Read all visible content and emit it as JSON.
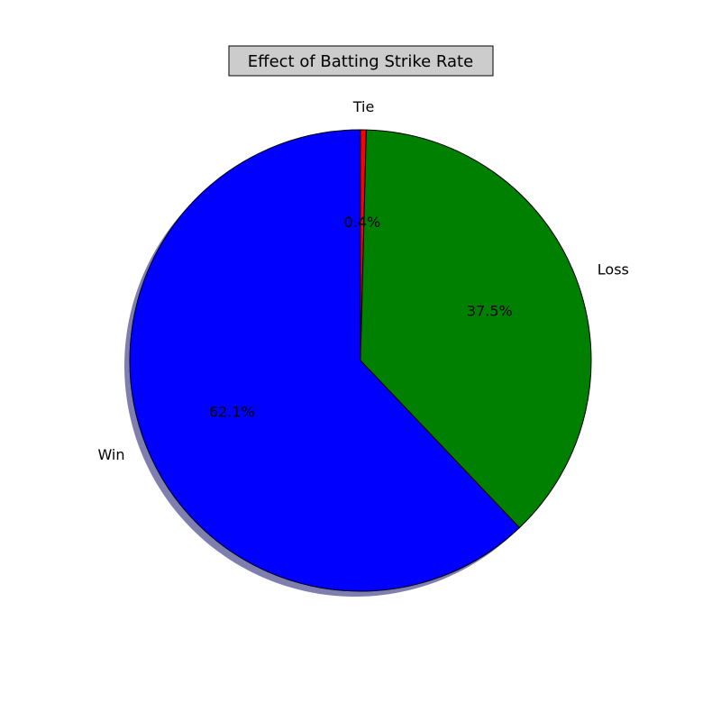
{
  "chart_data": {
    "type": "pie",
    "title": "Effect of Batting Strike Rate",
    "categories": [
      "Tie",
      "Loss",
      "Win"
    ],
    "values": [
      0.4,
      37.5,
      62.1
    ],
    "value_labels": [
      "0.4%",
      "37.5%",
      "62.1%"
    ],
    "colors": [
      "#ff0000",
      "#008000",
      "#0000ff"
    ],
    "start_angle_deg": 90,
    "direction": "clockwise",
    "shadow": true,
    "legend": "none",
    "title_box": true
  }
}
